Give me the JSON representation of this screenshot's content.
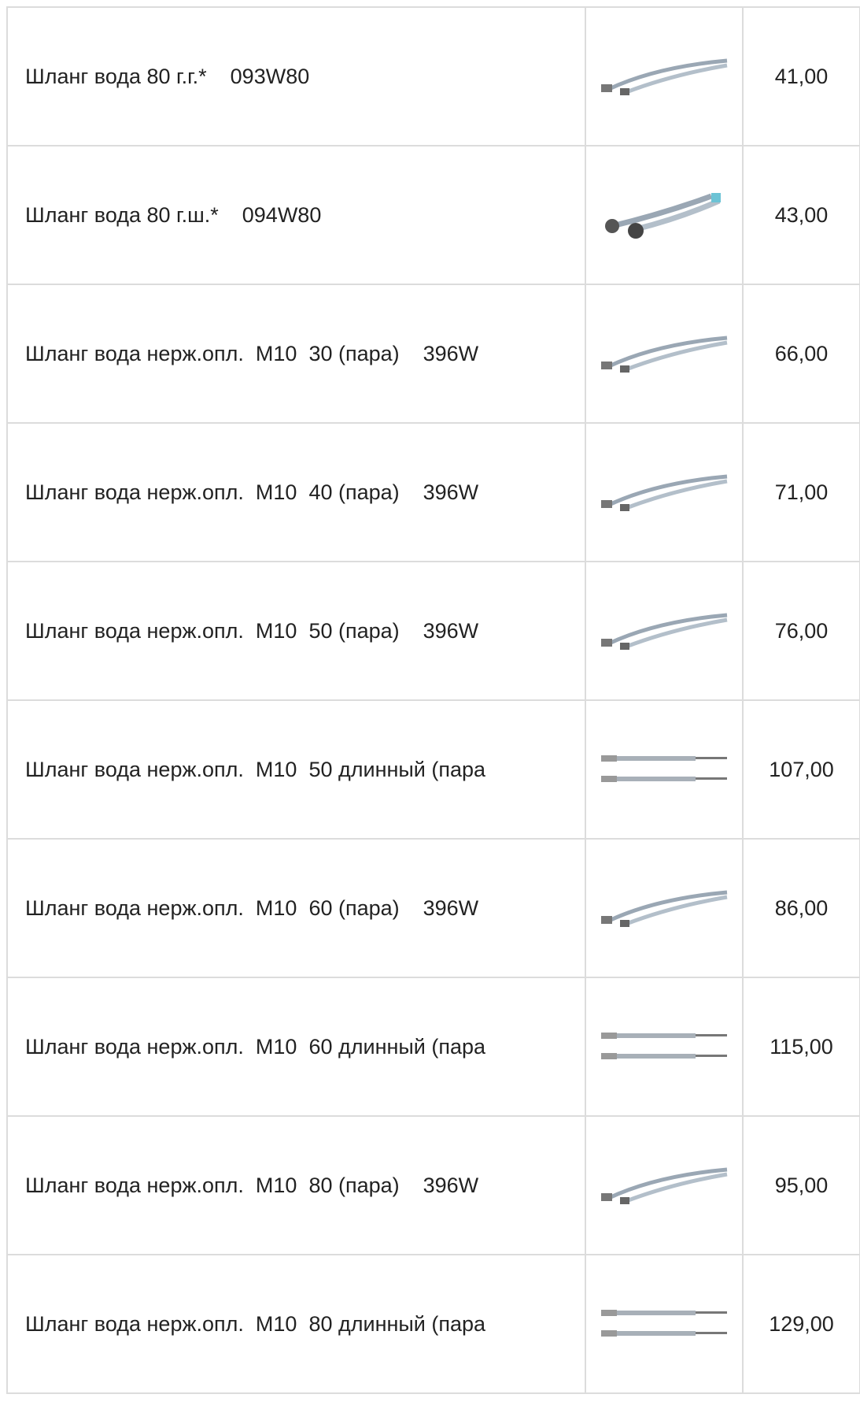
{
  "table": {
    "rows": [
      {
        "name": "Шланг вода 80 г.г.*    093W80",
        "price": "41,00"
      },
      {
        "name": "Шланг вода 80 г.ш.*    094W80",
        "price": "43,00"
      },
      {
        "name": "Шланг вода нерж.опл.  М10  30 (пара)    396W",
        "price": "66,00"
      },
      {
        "name": "Шланг вода нерж.опл.  М10  40 (пара)    396W",
        "price": "71,00"
      },
      {
        "name": "Шланг вода нерж.опл.  М10  50 (пара)    396W",
        "price": "76,00"
      },
      {
        "name": "Шланг вода нерж.опл.  М10  50 длинный (пара",
        "price": "107,00"
      },
      {
        "name": "Шланг вода нерж.опл.  М10  60 (пара)    396W",
        "price": "86,00"
      },
      {
        "name": "Шланг вода нерж.опл.  М10  60 длинный (пара",
        "price": "115,00"
      },
      {
        "name": "Шланг вода нерж.опл.  М10  80 (пара)    396W",
        "price": "95,00"
      },
      {
        "name": "Шланг вода нерж.опл.  М10  80 длинный (пара",
        "price": "129,00"
      }
    ]
  }
}
